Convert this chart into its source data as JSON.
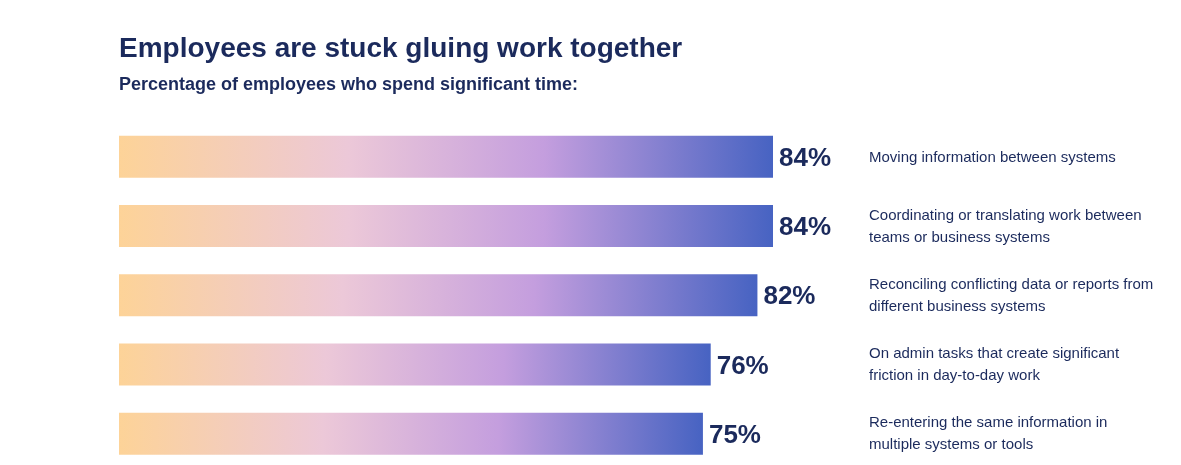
{
  "chart_data": {
    "type": "bar",
    "orientation": "horizontal",
    "title": "Employees are stuck gluing work together",
    "subtitle": "Percentage of employees who spend significant time:",
    "categories": [
      "Moving information between systems",
      "Coordinating or translating work between teams or business systems",
      "Reconciling conflicting data or reports from different business systems",
      "On admin tasks that create significant friction in day-to-day work",
      "Re-entering the same information in multiple systems or tools"
    ],
    "values": [
      84,
      84,
      82,
      76,
      75
    ],
    "value_labels": [
      "84%",
      "84%",
      "82%",
      "76%",
      "75%"
    ],
    "color": "#4763c2"
  }
}
